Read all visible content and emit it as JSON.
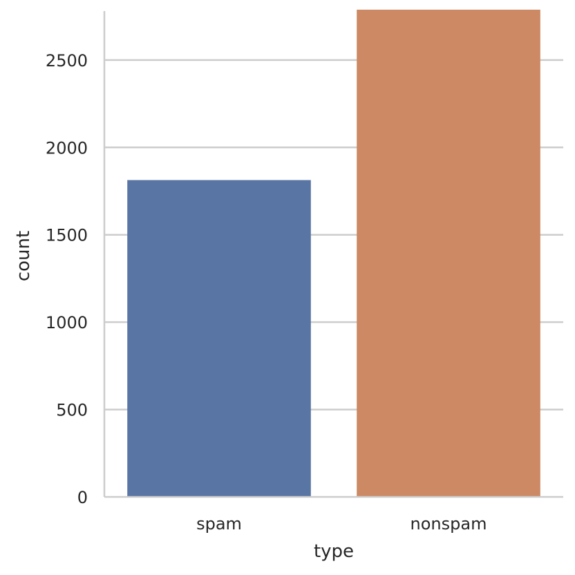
{
  "chart_data": {
    "type": "bar",
    "categories": [
      "spam",
      "nonspam"
    ],
    "values": [
      1813,
      2788
    ],
    "colors": [
      "#5975a4",
      "#cc8963"
    ],
    "xlabel": "type",
    "ylabel": "count",
    "ylim": [
      0,
      2788
    ],
    "yticks": [
      0,
      500,
      1000,
      1500,
      2000,
      2500
    ],
    "ytick_labels": [
      "0",
      "500",
      "1000",
      "1500",
      "2000",
      "2500"
    ],
    "grid": "horizontal",
    "grid_color": "#cccccc",
    "spines": [
      "left",
      "bottom"
    ]
  }
}
